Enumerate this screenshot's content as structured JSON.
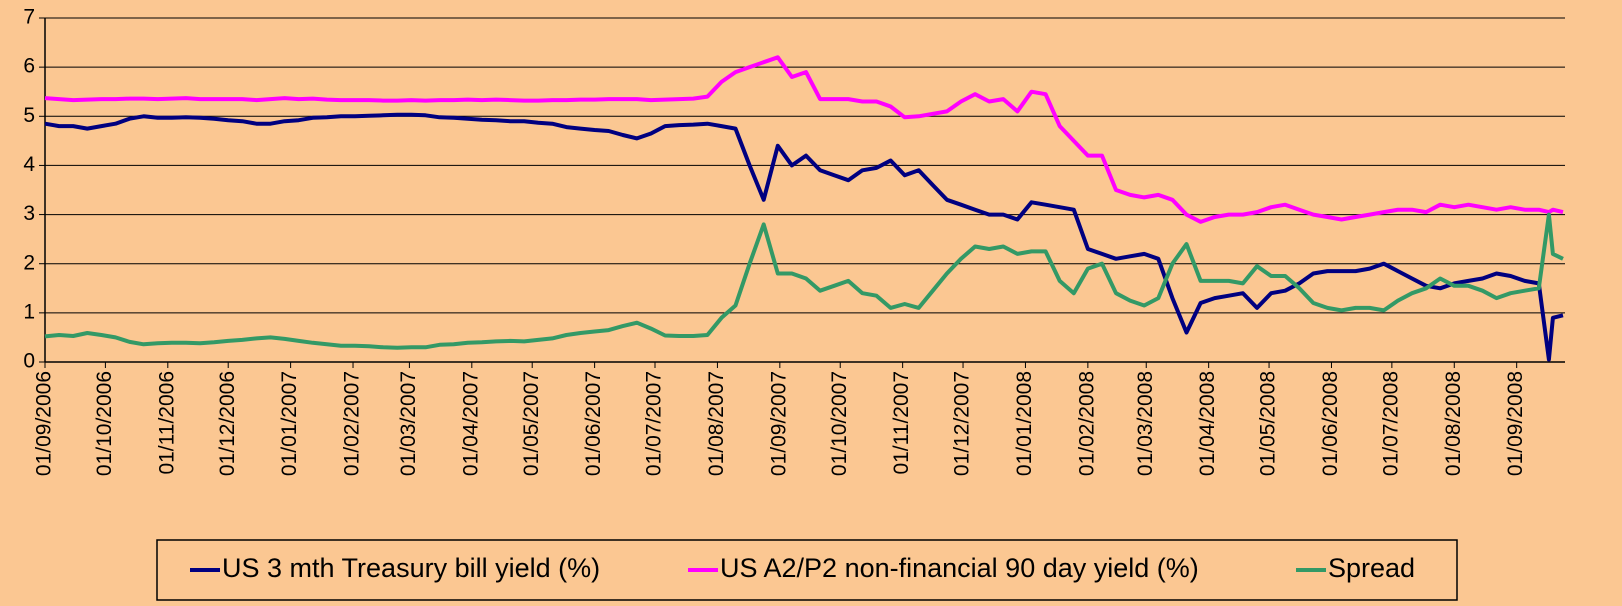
{
  "chart_data": {
    "type": "line",
    "x": [
      "01/09/2006",
      "08/09/2006",
      "15/09/2006",
      "22/09/2006",
      "29/09/2006",
      "06/10/2006",
      "13/10/2006",
      "20/10/2006",
      "27/10/2006",
      "03/11/2006",
      "10/11/2006",
      "17/11/2006",
      "24/11/2006",
      "01/12/2006",
      "08/12/2006",
      "15/12/2006",
      "22/12/2006",
      "29/12/2006",
      "05/01/2007",
      "12/01/2007",
      "19/01/2007",
      "26/01/2007",
      "02/02/2007",
      "09/02/2007",
      "16/02/2007",
      "23/02/2007",
      "02/03/2007",
      "09/03/2007",
      "16/03/2007",
      "23/03/2007",
      "30/03/2007",
      "06/04/2007",
      "13/04/2007",
      "20/04/2007",
      "27/04/2007",
      "04/05/2007",
      "11/05/2007",
      "18/05/2007",
      "25/05/2007",
      "01/06/2007",
      "08/06/2007",
      "15/06/2007",
      "22/06/2007",
      "29/06/2007",
      "06/07/2007",
      "13/07/2007",
      "20/07/2007",
      "27/07/2007",
      "03/08/2007",
      "10/08/2007",
      "17/08/2007",
      "24/08/2007",
      "31/08/2007",
      "07/09/2007",
      "14/09/2007",
      "21/09/2007",
      "28/09/2007",
      "05/10/2007",
      "12/10/2007",
      "19/10/2007",
      "26/10/2007",
      "02/11/2007",
      "09/11/2007",
      "16/11/2007",
      "23/11/2007",
      "30/11/2007",
      "07/12/2007",
      "14/12/2007",
      "21/12/2007",
      "28/12/2007",
      "04/01/2008",
      "11/01/2008",
      "18/01/2008",
      "25/01/2008",
      "01/02/2008",
      "08/02/2008",
      "15/02/2008",
      "22/02/2008",
      "29/02/2008",
      "07/03/2008",
      "14/03/2008",
      "21/03/2008",
      "28/03/2008",
      "04/04/2008",
      "11/04/2008",
      "18/04/2008",
      "25/04/2008",
      "02/05/2008",
      "09/05/2008",
      "16/05/2008",
      "23/05/2008",
      "30/05/2008",
      "06/06/2008",
      "13/06/2008",
      "20/06/2008",
      "27/06/2008",
      "04/07/2008",
      "11/07/2008",
      "18/07/2008",
      "25/07/2008",
      "01/08/2008",
      "08/08/2008",
      "15/08/2008",
      "22/08/2008",
      "29/08/2008",
      "05/09/2008",
      "12/09/2008",
      "17/09/2008",
      "19/09/2008",
      "24/09/2008"
    ],
    "series": [
      {
        "name": "US 3 mth Treasury bill yield (%)",
        "color": "#000080",
        "values": [
          4.85,
          4.8,
          4.8,
          4.75,
          4.8,
          4.85,
          4.95,
          5.0,
          4.97,
          4.97,
          4.98,
          4.97,
          4.95,
          4.92,
          4.9,
          4.85,
          4.85,
          4.9,
          4.92,
          4.97,
          4.98,
          5.0,
          5.0,
          5.01,
          5.02,
          5.03,
          5.03,
          5.02,
          4.98,
          4.97,
          4.95,
          4.93,
          4.92,
          4.9,
          4.9,
          4.87,
          4.85,
          4.78,
          4.75,
          4.72,
          4.7,
          4.62,
          4.55,
          4.65,
          4.8,
          4.82,
          4.83,
          4.85,
          4.8,
          4.75,
          4.0,
          3.3,
          4.4,
          4.0,
          4.2,
          3.9,
          3.8,
          3.7,
          3.9,
          3.95,
          4.1,
          3.8,
          3.9,
          3.6,
          3.3,
          3.2,
          3.1,
          3.0,
          3.0,
          2.9,
          3.25,
          3.2,
          3.15,
          3.1,
          2.3,
          2.2,
          2.1,
          2.15,
          2.2,
          2.1,
          1.3,
          0.6,
          1.2,
          1.3,
          1.35,
          1.4,
          1.1,
          1.4,
          1.45,
          1.6,
          1.8,
          1.85,
          1.85,
          1.85,
          1.9,
          2.0,
          1.85,
          1.7,
          1.55,
          1.5,
          1.6,
          1.65,
          1.7,
          1.8,
          1.75,
          1.65,
          1.6,
          0.05,
          0.9,
          0.95
        ]
      },
      {
        "name": "US A2/P2 non-financial 90 day yield (%)",
        "color": "#ff00ff",
        "values": [
          5.37,
          5.35,
          5.33,
          5.34,
          5.35,
          5.35,
          5.36,
          5.36,
          5.35,
          5.36,
          5.37,
          5.35,
          5.35,
          5.35,
          5.35,
          5.33,
          5.35,
          5.37,
          5.35,
          5.36,
          5.34,
          5.33,
          5.33,
          5.33,
          5.32,
          5.32,
          5.33,
          5.32,
          5.33,
          5.33,
          5.34,
          5.33,
          5.34,
          5.33,
          5.32,
          5.32,
          5.33,
          5.33,
          5.34,
          5.34,
          5.35,
          5.35,
          5.35,
          5.33,
          5.34,
          5.35,
          5.36,
          5.4,
          5.7,
          5.9,
          6.0,
          6.1,
          6.2,
          5.8,
          5.9,
          5.35,
          5.35,
          5.35,
          5.3,
          5.3,
          5.2,
          4.98,
          5.0,
          5.05,
          5.1,
          5.3,
          5.45,
          5.3,
          5.35,
          5.1,
          5.5,
          5.45,
          4.8,
          4.5,
          4.2,
          4.2,
          3.5,
          3.4,
          3.35,
          3.4,
          3.3,
          3.0,
          2.85,
          2.95,
          3.0,
          3.0,
          3.05,
          3.15,
          3.2,
          3.1,
          3.0,
          2.95,
          2.9,
          2.95,
          3.0,
          3.05,
          3.1,
          3.1,
          3.05,
          3.2,
          3.15,
          3.2,
          3.15,
          3.1,
          3.15,
          3.1,
          3.1,
          3.05,
          3.1,
          3.05
        ]
      },
      {
        "name": "Spread",
        "color": "#339966",
        "values": [
          0.52,
          0.55,
          0.53,
          0.59,
          0.55,
          0.5,
          0.41,
          0.36,
          0.38,
          0.39,
          0.39,
          0.38,
          0.4,
          0.43,
          0.45,
          0.48,
          0.5,
          0.47,
          0.43,
          0.39,
          0.36,
          0.33,
          0.33,
          0.32,
          0.3,
          0.29,
          0.3,
          0.3,
          0.35,
          0.36,
          0.39,
          0.4,
          0.42,
          0.43,
          0.42,
          0.45,
          0.48,
          0.55,
          0.59,
          0.62,
          0.65,
          0.73,
          0.8,
          0.68,
          0.54,
          0.53,
          0.53,
          0.55,
          0.9,
          1.15,
          2.0,
          2.8,
          1.8,
          1.8,
          1.7,
          1.45,
          1.55,
          1.65,
          1.4,
          1.35,
          1.1,
          1.18,
          1.1,
          1.45,
          1.8,
          2.1,
          2.35,
          2.3,
          2.35,
          2.2,
          2.25,
          2.25,
          1.65,
          1.4,
          1.9,
          2.0,
          1.4,
          1.25,
          1.15,
          1.3,
          2.0,
          2.4,
          1.65,
          1.65,
          1.65,
          1.6,
          1.95,
          1.75,
          1.75,
          1.5,
          1.2,
          1.1,
          1.05,
          1.1,
          1.1,
          1.05,
          1.25,
          1.4,
          1.5,
          1.7,
          1.55,
          1.55,
          1.45,
          1.3,
          1.4,
          1.45,
          1.5,
          3.0,
          2.2,
          2.1
        ]
      }
    ],
    "xlim": [
      "01/09/2006",
      "25/09/2008"
    ],
    "xticks": [
      "01/09/2006",
      "01/10/2006",
      "01/11/2006",
      "01/12/2006",
      "01/01/2007",
      "01/02/2007",
      "01/03/2007",
      "01/04/2007",
      "01/05/2007",
      "01/06/2007",
      "01/07/2007",
      "01/08/2007",
      "01/09/2007",
      "01/10/2007",
      "01/11/2007",
      "01/12/2007",
      "01/01/2008",
      "01/02/2008",
      "01/03/2008",
      "01/04/2008",
      "01/05/2008",
      "01/06/2008",
      "01/07/2008",
      "01/08/2008",
      "01/09/2008"
    ],
    "ylim": [
      0,
      7
    ],
    "yticks": [
      0,
      1,
      2,
      3,
      4,
      5,
      6,
      7
    ],
    "grid": true,
    "legend": "bottom"
  }
}
